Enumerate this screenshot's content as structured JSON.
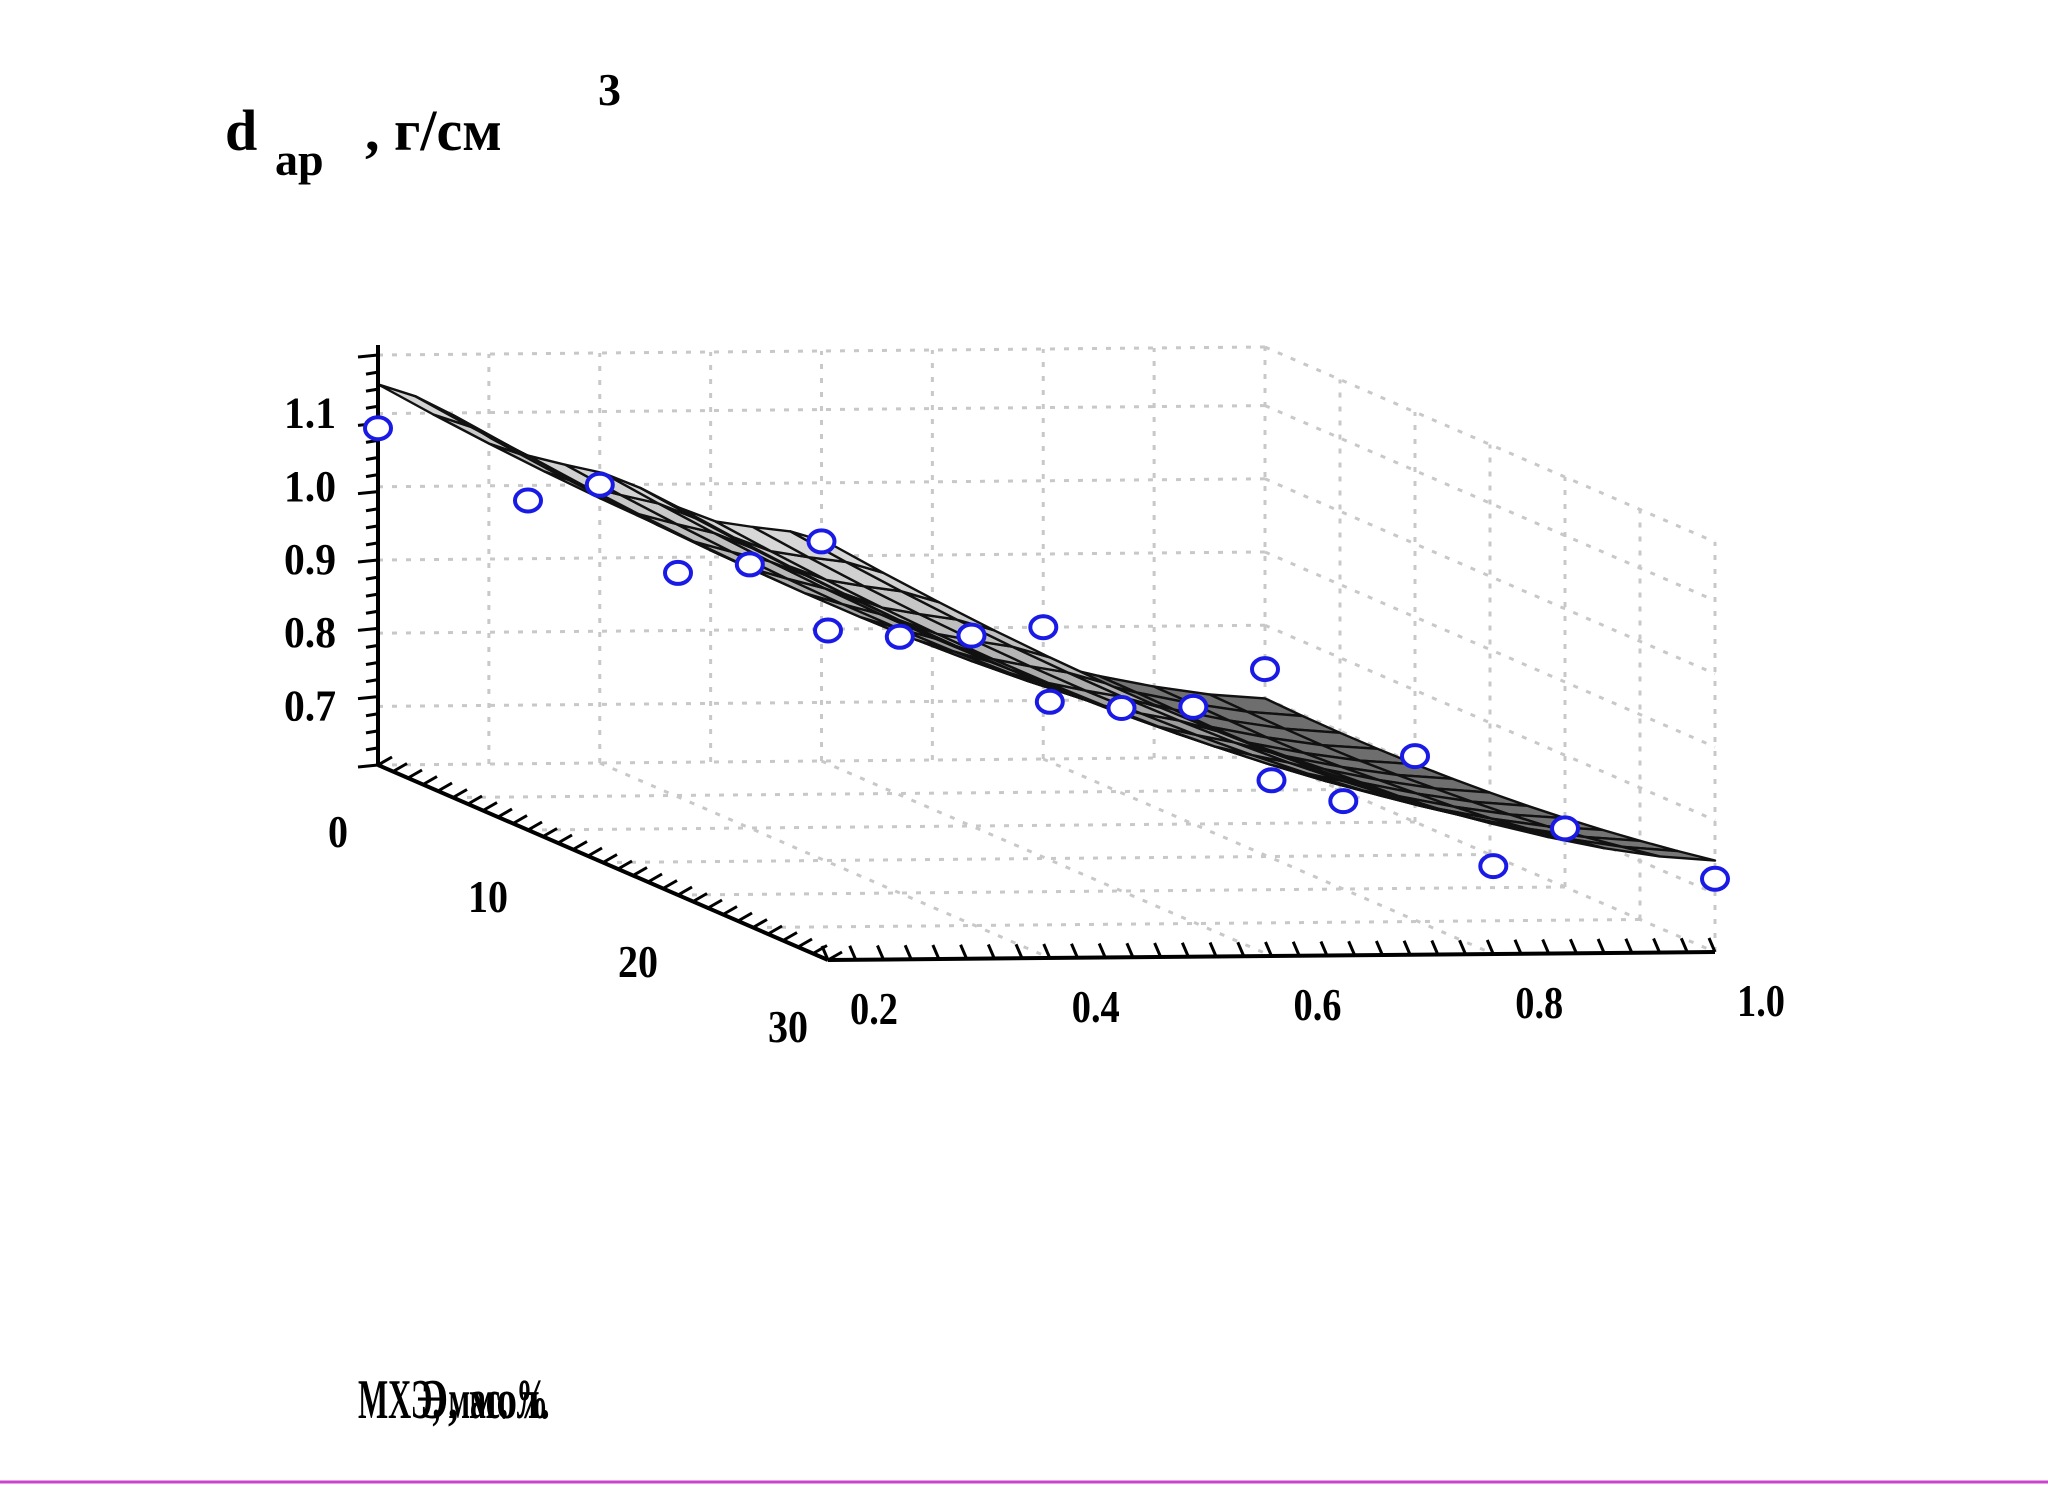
{
  "chart_data": {
    "type": "surface3d",
    "zlabel": {
      "main": "d",
      "sub": "ар",
      "rest": ", г/см",
      "sup": "3"
    },
    "xlabel_lines": [
      "МХЭ, мас. %",
      "Э, мол."
    ],
    "z_ticks": [
      "0.7",
      "0.8",
      "0.9",
      "1.0",
      "1.1"
    ],
    "x_axis": {
      "ticks": [
        "0",
        "10",
        "20",
        "30"
      ],
      "range": [
        0,
        30
      ]
    },
    "y_axis": {
      "ticks": [
        "0.2",
        "0.4",
        "0.6",
        "0.8",
        "1.0"
      ],
      "range": [
        0.2,
        1.0
      ]
    },
    "z_range": [
      0.62,
      1.18
    ],
    "grid": true,
    "surface_color": "#9a9a9a",
    "marker_stroke": "#1a1ae6",
    "points": [
      {
        "x": 0,
        "y": 1.0,
        "z": 0.74
      },
      {
        "x": 10,
        "y": 1.0,
        "z": 0.71
      },
      {
        "x": 20,
        "y": 1.0,
        "z": 0.7
      },
      {
        "x": 30,
        "y": 1.0,
        "z": 0.72
      },
      {
        "x": 0,
        "y": 0.8,
        "z": 0.8
      },
      {
        "x": 10,
        "y": 0.8,
        "z": 0.78
      },
      {
        "x": 20,
        "y": 0.8,
        "z": 0.74
      },
      {
        "x": 30,
        "y": 0.8,
        "z": 0.74
      },
      {
        "x": 0,
        "y": 0.6,
        "z": 0.92
      },
      {
        "x": 10,
        "y": 0.6,
        "z": 0.88
      },
      {
        "x": 20,
        "y": 0.6,
        "z": 0.87
      },
      {
        "x": 30,
        "y": 0.6,
        "z": 0.86
      },
      {
        "x": 0,
        "y": 0.4,
        "z": 1.0
      },
      {
        "x": 10,
        "y": 0.4,
        "z": 0.98
      },
      {
        "x": 20,
        "y": 0.4,
        "z": 0.97
      },
      {
        "x": 30,
        "y": 0.4,
        "z": 0.97
      },
      {
        "x": 0,
        "y": 0.2,
        "z": 1.08
      },
      {
        "x": 10,
        "y": 0.2,
        "z": 1.07
      },
      {
        "x": 20,
        "y": 0.2,
        "z": 1.06
      },
      {
        "x": 30,
        "y": 0.2,
        "z": 1.07
      }
    ]
  }
}
